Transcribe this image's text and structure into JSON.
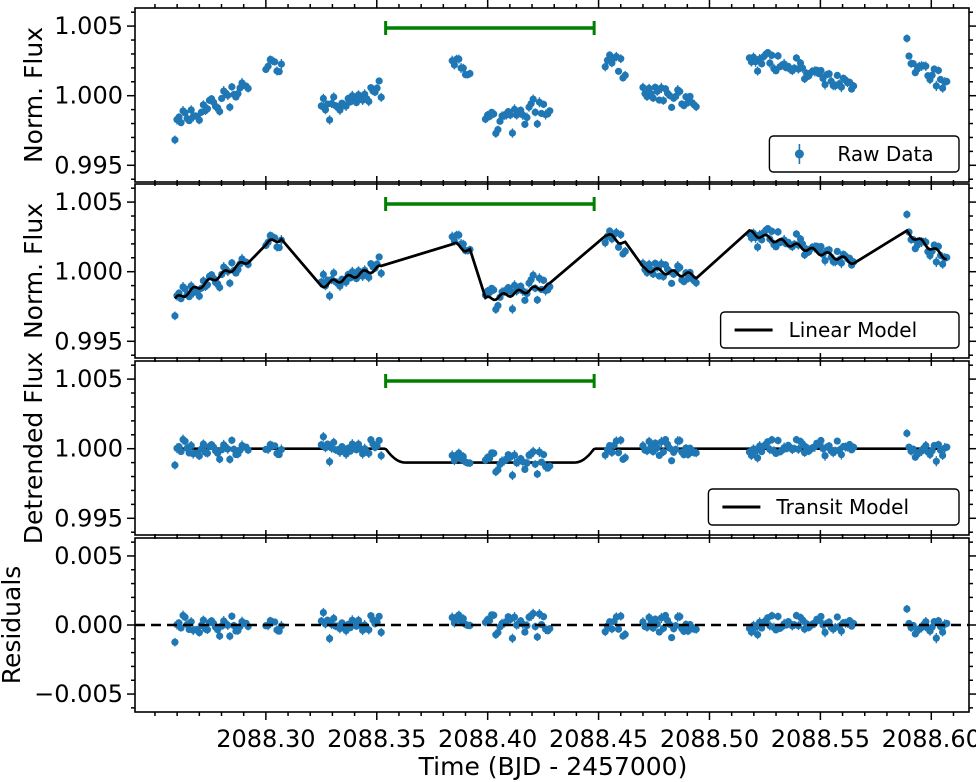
{
  "chart_data": [
    {
      "type": "scatter",
      "panel": "raw",
      "ylabel": "Norm. Flux",
      "ylim": [
        0.9938,
        1.0063
      ],
      "yticks": [
        0.995,
        1.0,
        1.005
      ],
      "ytick_labels": [
        "0.995",
        "1.000",
        "1.005"
      ],
      "legend": {
        "placement": "lower-right",
        "entries": [
          "Raw Data"
        ]
      },
      "series": [
        {
          "name": "Raw Data",
          "kind": "errorbar-points",
          "color": "#1f77b4"
        }
      ],
      "transit_window": [
        2088.354,
        2088.448
      ]
    },
    {
      "type": "line",
      "panel": "linear",
      "ylabel": "Norm. Flux",
      "ylim": [
        0.9938,
        1.0063
      ],
      "yticks": [
        0.995,
        1.0,
        1.005
      ],
      "ytick_labels": [
        "0.995",
        "1.000",
        "1.005"
      ],
      "legend": {
        "placement": "lower-right",
        "entries": [
          "Linear Model"
        ]
      },
      "series": [
        {
          "name": "Linear Model",
          "color": "#000000"
        }
      ],
      "transit_window": [
        2088.354,
        2088.448
      ]
    },
    {
      "type": "line",
      "panel": "transit",
      "ylabel": "Detrended Flux",
      "ylim": [
        0.9938,
        1.0063
      ],
      "yticks": [
        0.995,
        1.0,
        1.005
      ],
      "ytick_labels": [
        "0.995",
        "1.000",
        "1.005"
      ],
      "legend": {
        "placement": "lower-right",
        "entries": [
          "Transit Model"
        ]
      },
      "series": [
        {
          "name": "Transit Model",
          "color": "#000000",
          "depth": 0.001
        }
      ],
      "transit_window": [
        2088.354,
        2088.448
      ]
    },
    {
      "type": "scatter",
      "panel": "residuals",
      "ylabel": "Residuals",
      "ylim": [
        -0.0063,
        0.0063
      ],
      "yticks": [
        -0.005,
        0.0,
        0.005
      ],
      "ytick_labels": [
        "−0.005",
        "0.000",
        "0.005"
      ],
      "reference_line": 0
    }
  ],
  "x_axis": {
    "label": "Time (BJD - 2457000)",
    "xlim": [
      2088.241,
      2088.617
    ],
    "ticks": [
      2088.3,
      2088.35,
      2088.4,
      2088.45,
      2088.5,
      2088.55,
      2088.6
    ],
    "tick_labels": [
      "2088.30",
      "2088.35",
      "2088.40",
      "2088.45",
      "2088.50",
      "2088.55",
      "2088.60"
    ]
  },
  "segments": [
    {
      "t0": 2088.259,
      "t1": 2088.292,
      "raw_start": 0.998,
      "raw_end": 1.0008
    },
    {
      "t0": 2088.3,
      "t1": 2088.307,
      "raw_start": 1.002,
      "raw_end": 1.0024
    },
    {
      "t0": 2088.325,
      "t1": 2088.352,
      "raw_start": 0.999,
      "raw_end": 1.0003
    },
    {
      "t0": 2088.384,
      "t1": 2088.392,
      "raw_start": 1.002,
      "raw_end": 1.0015
    },
    {
      "t0": 2088.399,
      "t1": 2088.428,
      "raw_start": 0.998,
      "raw_end": 0.999
    },
    {
      "t0": 2088.453,
      "t1": 2088.462,
      "raw_start": 1.0027,
      "raw_end": 1.002
    },
    {
      "t0": 2088.47,
      "t1": 2088.494,
      "raw_start": 1.0002,
      "raw_end": 0.9997
    },
    {
      "t0": 2088.518,
      "t1": 2088.565,
      "raw_start": 1.0028,
      "raw_end": 1.0007
    },
    {
      "t0": 2088.589,
      "t1": 2088.607,
      "raw_start": 1.0028,
      "raw_end": 1.001
    }
  ],
  "colors": {
    "data": "#1f77b4",
    "model": "#000000",
    "window": "#008000"
  }
}
